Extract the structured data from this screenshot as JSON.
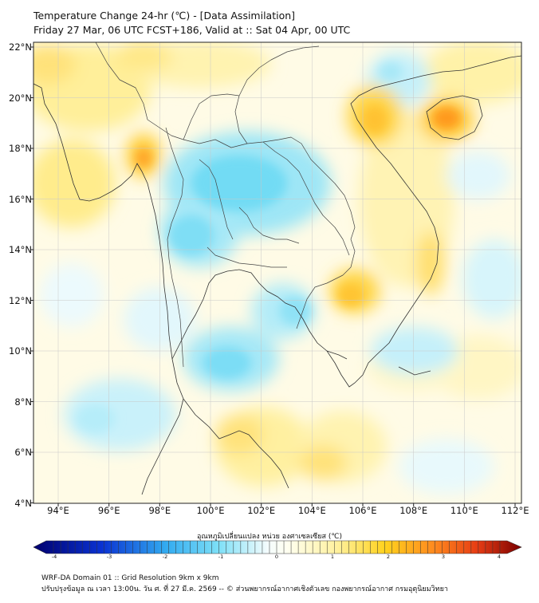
{
  "title": {
    "line1": "Temperature Change 24-hr (℃) - [Data Assimilation]",
    "line2": "Friday 27 Mar, 06 UTC FCST+186, Valid at :: Sat 04 Apr, 00 UTC"
  },
  "map": {
    "lat_labels": [
      "22°N",
      "20°N",
      "18°N",
      "16°N",
      "14°N",
      "12°N",
      "10°N",
      "8°N",
      "6°N",
      "4°N"
    ],
    "lon_labels": [
      "94°E",
      "96°E",
      "98°E",
      "100°E",
      "102°E",
      "104°E",
      "106°E",
      "108°E",
      "110°E",
      "112°E"
    ]
  },
  "colorbar": {
    "title": "อุณหภูมิเปลี่ยนแปลง หน่วย องศาเซลเซียส (℃)",
    "ticks": [
      "-4",
      "-3",
      "-2",
      "-1",
      "0",
      "1",
      "2",
      "3",
      "4"
    ],
    "min": -4,
    "max": 4,
    "colors": [
      "#00006e",
      "#0000b4",
      "#0a32d2",
      "#1e6ee6",
      "#32aaf0",
      "#5ad2f5",
      "#a0e8f8",
      "#e6f8fc",
      "#fffff0",
      "#fff5b4",
      "#ffeb64",
      "#ffd21e",
      "#ffaa1e",
      "#ff781e",
      "#e63c14",
      "#b40a0a",
      "#7a0000"
    ],
    "colors_note": "dark blue to cyan to white to yellow to orange to dark red"
  },
  "footer": {
    "line1": "WRF-DA Domain 01 :: Grid Resolution 9km x 9km",
    "line2": "ปรับปรุงข้อมูล ณ เวลา 13:00น. วัน ศ. ที่ 27 มี.ค. 2569 -- © ส่วนพยากรณ์อากาศเชิงตัวเลข กองพยากรณ์อากาศ กรมอุตุนิยมวิทยา"
  }
}
